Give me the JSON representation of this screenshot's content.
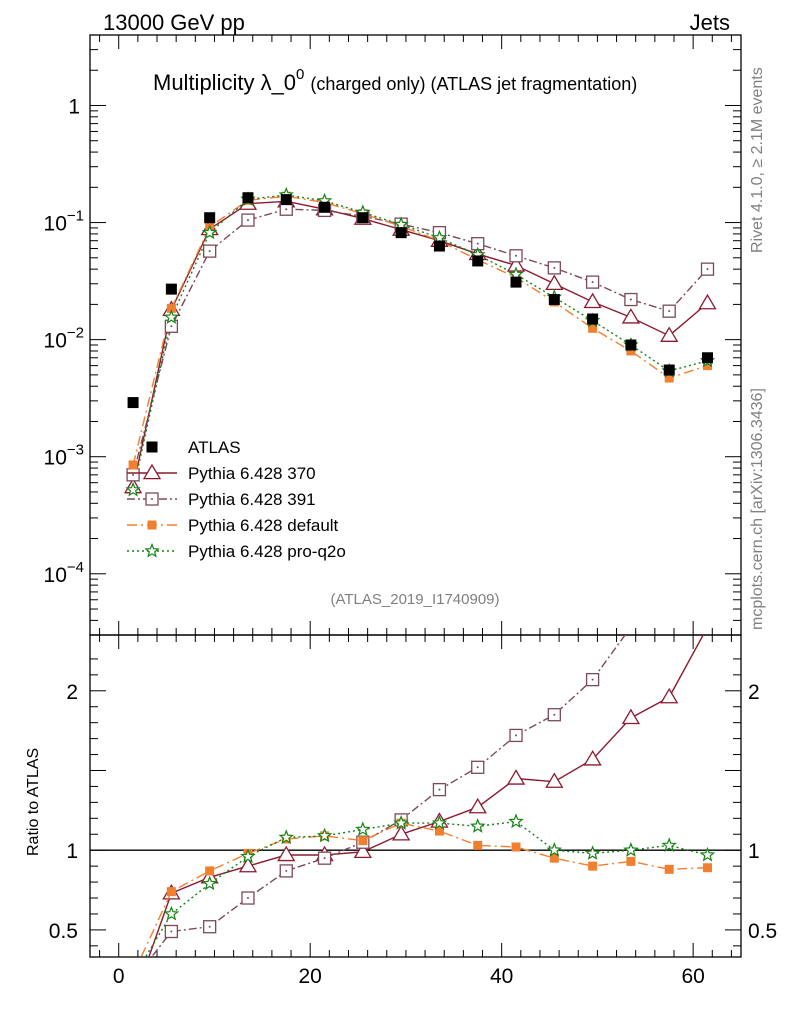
{
  "header": {
    "left": "13000 GeV pp",
    "right": "Jets",
    "title_main": "Multiplicity λ_0",
    "title_sup": "0",
    "title_sub": "(charged only) (ATLAS jet fragmentation)"
  },
  "side": {
    "rivet": "Rivet 4.1.0, ≥ 2.1M events",
    "mcplots": "mcplots.cern.ch [arXiv:1306.3436]"
  },
  "analysis_id": "(ATLAS_2019_I1740909)",
  "ratio_ylabel": "Ratio to ATLAS",
  "chart_data": {
    "type": "scatter",
    "title": "Multiplicity λ_0^0 (charged only) (ATLAS jet fragmentation)",
    "xlabel": "",
    "xlim": [
      -3,
      65
    ],
    "main": {
      "ylabel": "",
      "yscale": "log",
      "ylim": [
        3e-05,
        4
      ],
      "yticks": [
        {
          "value": 1,
          "label": "1"
        },
        {
          "value": 0.1,
          "label": "10",
          "exp": "−1"
        },
        {
          "value": 0.01,
          "label": "10",
          "exp": "−2"
        },
        {
          "value": 0.001,
          "label": "10",
          "exp": "−3"
        },
        {
          "value": 0.0001,
          "label": "10",
          "exp": "−4"
        }
      ]
    },
    "ratio": {
      "ylabel": "Ratio to ATLAS",
      "ylim": [
        0.33,
        2.35
      ],
      "yticks": [
        {
          "value": 0.5,
          "label": "0.5"
        },
        {
          "value": 1,
          "label": "1"
        },
        {
          "value": 2,
          "label": "2"
        }
      ]
    },
    "xticks": [
      {
        "value": 0,
        "label": "0"
      },
      {
        "value": 20,
        "label": "20"
      },
      {
        "value": 40,
        "label": "40"
      },
      {
        "value": 60,
        "label": "60"
      }
    ],
    "x": [
      1.5,
      5.5,
      9.5,
      13.5,
      17.5,
      21.5,
      25.5,
      29.5,
      33.5,
      37.5,
      41.5,
      45.5,
      49.5,
      53.5,
      57.5,
      61.5
    ],
    "data": {
      "name": "ATLAS",
      "values": [
        0.0029,
        0.027,
        0.11,
        0.163,
        0.157,
        0.135,
        0.11,
        0.082,
        0.063,
        0.047,
        0.031,
        0.022,
        0.015,
        0.009,
        0.0055,
        0.007
      ]
    },
    "series": [
      {
        "name": "Pythia 6.428 370",
        "color": "#8b1a2e",
        "marker": "triangle",
        "dash": "",
        "values": [
          0.00055,
          0.018,
          0.088,
          0.145,
          0.152,
          0.13,
          0.108,
          0.087,
          0.07,
          0.054,
          0.043,
          0.03,
          0.021,
          0.0155,
          0.0108,
          0.0205
        ],
        "ratio": [
          0.05,
          0.73,
          0.83,
          0.9,
          0.97,
          0.97,
          0.99,
          1.1,
          1.18,
          1.27,
          1.45,
          1.43,
          1.57,
          1.83,
          1.96,
          2.4
        ]
      },
      {
        "name": "Pythia 6.428 391",
        "color": "#7a4a5a",
        "marker": "square",
        "dash": "8,3,2,3",
        "values": [
          0.0007,
          0.013,
          0.057,
          0.105,
          0.13,
          0.127,
          0.113,
          0.097,
          0.082,
          0.066,
          0.052,
          0.041,
          0.031,
          0.022,
          0.0175,
          0.04
        ],
        "ratio": [
          0.18,
          0.49,
          0.52,
          0.7,
          0.87,
          0.95,
          1.05,
          1.19,
          1.38,
          1.52,
          1.72,
          1.85,
          2.07,
          2.4,
          2.4,
          2.4
        ]
      },
      {
        "name": "Pythia 6.428 default",
        "color": "#f08030",
        "marker": "smallsquare",
        "dash": "10,4,2,4",
        "values": [
          0.00085,
          0.0185,
          0.092,
          0.155,
          0.168,
          0.148,
          0.119,
          0.093,
          0.07,
          0.048,
          0.034,
          0.021,
          0.0125,
          0.008,
          0.0047,
          0.006
        ],
        "ratio": [
          0.22,
          0.74,
          0.87,
          0.98,
          1.07,
          1.09,
          1.06,
          1.17,
          1.12,
          1.03,
          1.02,
          0.95,
          0.9,
          0.93,
          0.88,
          0.89
        ]
      },
      {
        "name": "Pythia 6.428 pro-q2o",
        "color": "#148214",
        "marker": "star",
        "dash": "2,3",
        "values": [
          0.00052,
          0.0155,
          0.082,
          0.158,
          0.172,
          0.153,
          0.122,
          0.096,
          0.074,
          0.053,
          0.036,
          0.023,
          0.0145,
          0.009,
          0.0054,
          0.0066
        ],
        "ratio": [
          0.2,
          0.6,
          0.79,
          0.96,
          1.08,
          1.09,
          1.13,
          1.17,
          1.17,
          1.15,
          1.18,
          1.0,
          0.98,
          1.0,
          1.03,
          0.97
        ]
      }
    ]
  }
}
